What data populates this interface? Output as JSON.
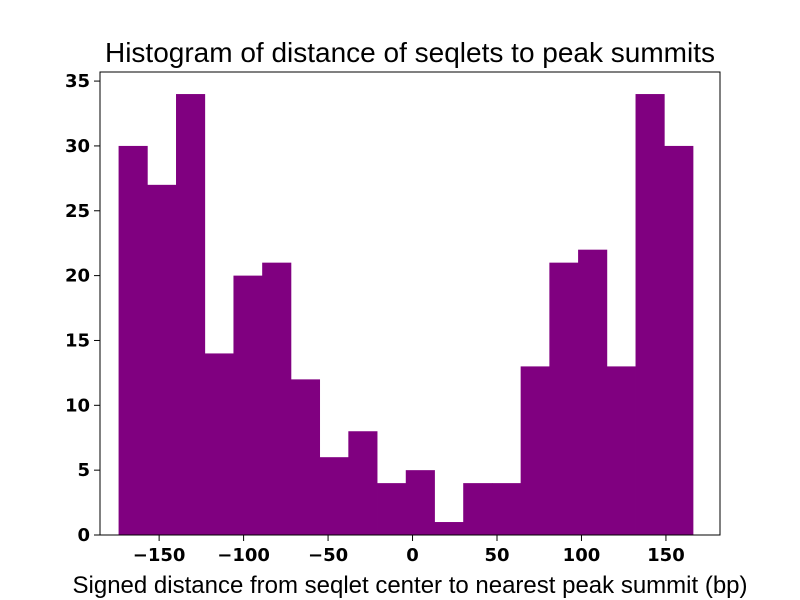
{
  "chart_data": {
    "type": "bar",
    "title": "Histogram of distance of seqlets to peak summits",
    "xlabel": "Signed distance from seqlet center to nearest peak summit (bp)",
    "ylabel": "",
    "color": "#800080",
    "xlim": [
      -185,
      182
    ],
    "ylim": [
      0,
      35.7
    ],
    "xticks": [
      -150,
      -100,
      -50,
      0,
      50,
      100,
      150
    ],
    "xtick_labels": [
      "−150",
      "−100",
      "−50",
      "0",
      "50",
      "100",
      "150"
    ],
    "yticks": [
      0,
      5,
      10,
      15,
      20,
      25,
      30,
      35
    ],
    "ytick_labels": [
      "0",
      "5",
      "10",
      "15",
      "20",
      "25",
      "30",
      "35"
    ],
    "bin_edges": [
      -174,
      -157,
      -140,
      -123,
      -106,
      -89,
      -72,
      -55,
      -38,
      -21,
      -4,
      13,
      30,
      47,
      64,
      81,
      98,
      115,
      132,
      149,
      166
    ],
    "values": [
      30,
      27,
      34,
      14,
      20,
      21,
      12,
      6,
      8,
      4,
      5,
      1,
      4,
      4,
      13,
      21,
      22,
      13,
      34,
      30
    ]
  }
}
